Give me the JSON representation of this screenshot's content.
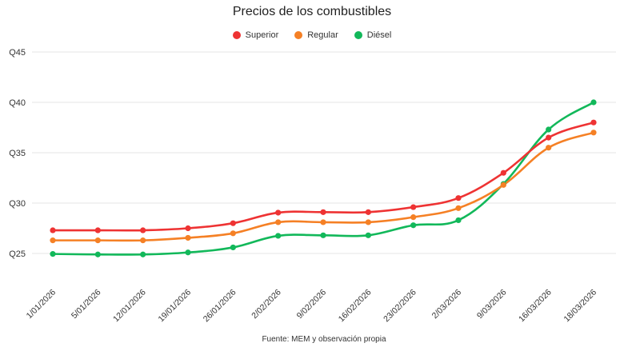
{
  "chart_data": {
    "type": "line",
    "title": "Precios de los combustibles",
    "xlabel": "",
    "ylabel": "",
    "categories": [
      "1/01/2026",
      "5/01/2026",
      "12/01/2026",
      "19/01/2026",
      "26/01/2026",
      "2/02/2026",
      "9/02/2026",
      "16/02/2026",
      "23/02/2026",
      "2/03/2026",
      "9/03/2026",
      "16/03/2026",
      "18/03/2026"
    ],
    "y_ticks": [
      "Q25",
      "Q30",
      "Q35",
      "Q40",
      "Q45"
    ],
    "ylim": [
      22,
      47
    ],
    "legend_position": "top-center",
    "series": [
      {
        "name": "Superior",
        "color": "#ee3333",
        "values": [
          27.3,
          27.3,
          27.3,
          27.5,
          28.0,
          29.05,
          29.1,
          29.1,
          29.6,
          30.5,
          33.0,
          36.5,
          38.0
        ]
      },
      {
        "name": "Regular",
        "color": "#f58025",
        "values": [
          26.3,
          26.3,
          26.3,
          26.55,
          27.0,
          28.1,
          28.1,
          28.1,
          28.6,
          29.5,
          31.8,
          35.5,
          37.0
        ]
      },
      {
        "name": "Diésel",
        "color": "#12b85a",
        "values": [
          24.95,
          24.9,
          24.9,
          25.1,
          25.6,
          26.75,
          26.8,
          26.8,
          27.8,
          28.3,
          31.9,
          37.3,
          40.0
        ]
      }
    ]
  },
  "caption": "Fuente: MEM y observación propia"
}
